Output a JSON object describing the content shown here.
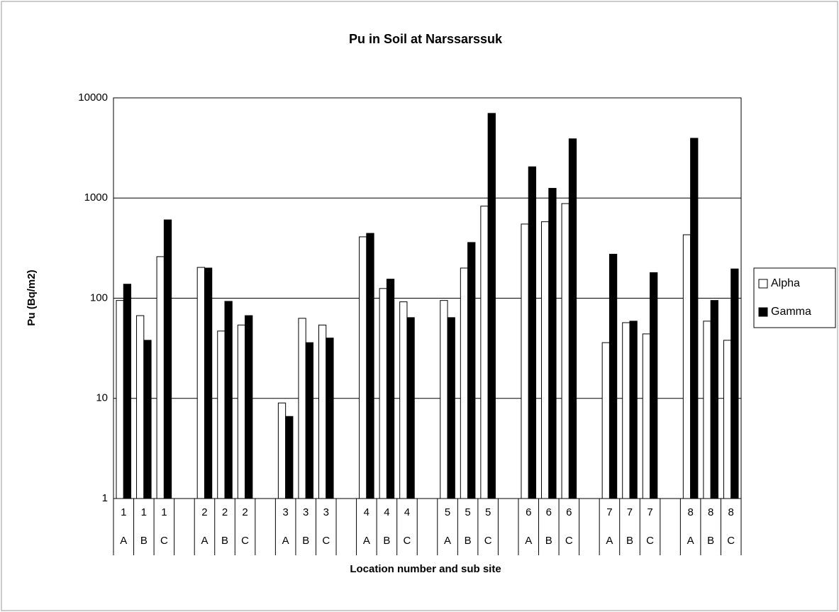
{
  "chart_data": {
    "type": "bar",
    "title": "Pu in Soil at Narssarssuk",
    "x_label": "Location number and sub site",
    "y_label": "Pu (Bq/m2)",
    "categories": [
      "1",
      "1",
      "1",
      "2",
      "2",
      "2",
      "3",
      "3",
      "3",
      "4",
      "4",
      "4",
      "5",
      "5",
      "5",
      "6",
      "6",
      "6",
      "7",
      "7",
      "7",
      "8",
      "8",
      "8"
    ],
    "subcategories": [
      "A",
      "B",
      "C",
      "A",
      "B",
      "C",
      "A",
      "B",
      "C",
      "A",
      "B",
      "C",
      "A",
      "B",
      "C",
      "A",
      "B",
      "C",
      "A",
      "B",
      "C",
      "A",
      "B",
      "C"
    ],
    "series": [
      {
        "name": "Alpha",
        "color": "#ffffff",
        "values": [
          95,
          67,
          260,
          203,
          47,
          54,
          9,
          63,
          54,
          410,
          125,
          92,
          95,
          200,
          830,
          550,
          580,
          880,
          36,
          57,
          44,
          430,
          59,
          38
        ]
      },
      {
        "name": "Gamma",
        "color": "#000000",
        "values": [
          138,
          38,
          605,
          200,
          93,
          67,
          6.6,
          36,
          40,
          444,
          155,
          64,
          64,
          360,
          7000,
          2050,
          1250,
          3900,
          275,
          59,
          180,
          3950,
          95,
          196
        ]
      }
    ],
    "log_scale": "y",
    "ylim": [
      1,
      10000
    ],
    "yticks": [
      1,
      10,
      100,
      1000,
      10000
    ],
    "grid": true,
    "legend": "right"
  }
}
